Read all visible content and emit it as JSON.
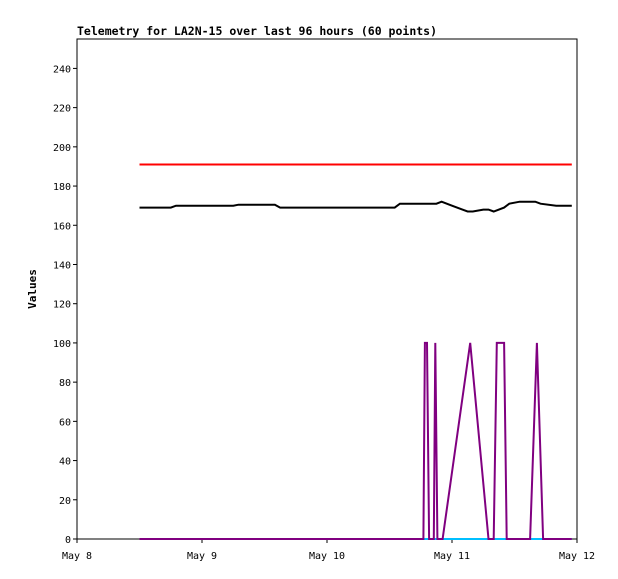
{
  "chart_data": {
    "type": "line",
    "title": "Telemetry for LA2N-15 over last 96 hours (60 points)",
    "xlabel": "",
    "ylabel": "Values",
    "x_ticks": [
      "May 8",
      "May 9",
      "May 10",
      "May 11",
      "May 12"
    ],
    "xlim_hours": [
      0,
      96
    ],
    "ylim": [
      0,
      255
    ],
    "y_ticks": [
      0,
      20,
      40,
      60,
      80,
      100,
      120,
      140,
      160,
      180,
      200,
      220,
      240
    ],
    "grid": false,
    "legend": "none",
    "series": [
      {
        "color": "#ff0000",
        "points": [
          [
            12,
            191
          ],
          [
            95,
            191
          ]
        ]
      },
      {
        "color": "#000000",
        "points": [
          [
            12,
            169
          ],
          [
            18,
            169
          ],
          [
            19,
            170
          ],
          [
            24,
            170
          ],
          [
            30,
            170
          ],
          [
            31,
            170.5
          ],
          [
            38,
            170.5
          ],
          [
            39,
            169
          ],
          [
            45,
            169
          ],
          [
            55,
            169
          ],
          [
            61,
            169
          ],
          [
            62,
            171
          ],
          [
            66,
            171
          ],
          [
            69,
            171
          ],
          [
            70,
            172
          ],
          [
            72,
            170
          ],
          [
            74,
            168
          ],
          [
            75,
            167
          ],
          [
            76,
            167
          ],
          [
            78,
            168
          ],
          [
            79,
            168
          ],
          [
            80,
            167
          ],
          [
            82,
            169
          ],
          [
            83,
            171
          ],
          [
            85,
            172
          ],
          [
            88,
            172
          ],
          [
            89,
            171
          ],
          [
            92,
            170
          ],
          [
            95,
            170
          ]
        ]
      },
      {
        "color": "#00bfff",
        "points": [
          [
            12,
            0
          ],
          [
            95,
            0
          ]
        ]
      },
      {
        "color": "#800080",
        "points": [
          [
            12,
            0
          ],
          [
            66.5,
            0
          ],
          [
            66.8,
            100
          ],
          [
            67.2,
            100
          ],
          [
            67.6,
            0
          ],
          [
            68.5,
            0
          ],
          [
            68.8,
            100
          ],
          [
            69.2,
            0
          ],
          [
            70.2,
            0
          ],
          [
            75.5,
            100
          ],
          [
            79,
            0
          ],
          [
            80,
            0
          ],
          [
            80.6,
            100
          ],
          [
            82,
            100
          ],
          [
            82.5,
            0
          ],
          [
            87,
            0
          ],
          [
            88.3,
            100
          ],
          [
            89.5,
            0
          ],
          [
            95,
            0
          ]
        ]
      }
    ]
  }
}
